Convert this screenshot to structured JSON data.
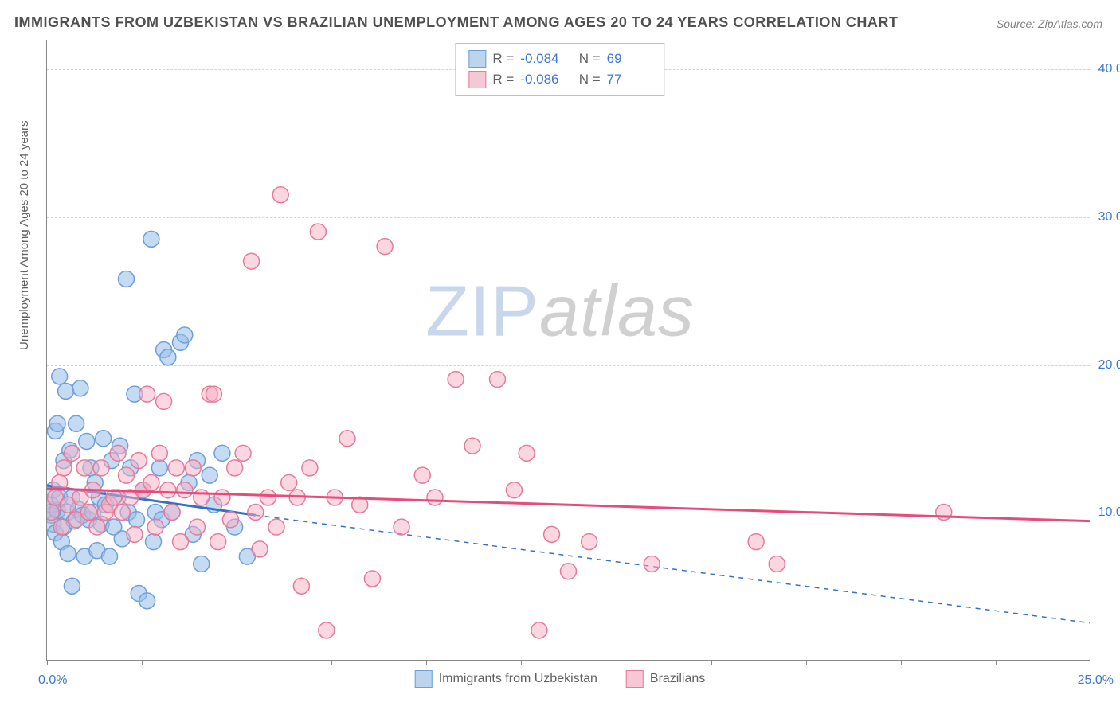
{
  "chart": {
    "type": "scatter",
    "title": "IMMIGRANTS FROM UZBEKISTAN VS BRAZILIAN UNEMPLOYMENT AMONG AGES 20 TO 24 YEARS CORRELATION CHART",
    "source": "Source: ZipAtlas.com",
    "y_axis_label": "Unemployment Among Ages 20 to 24 years",
    "xlim": [
      0,
      25
    ],
    "ylim": [
      0,
      42
    ],
    "x_tick_count": 11,
    "x_left_label": "0.0%",
    "x_right_label": "25.0%",
    "y_ticks": [
      {
        "v": 10,
        "label": "10.0%"
      },
      {
        "v": 20,
        "label": "20.0%"
      },
      {
        "v": 30,
        "label": "30.0%"
      },
      {
        "v": 40,
        "label": "40.0%"
      }
    ],
    "grid_color": "#d5d5d5",
    "axis_color": "#888888",
    "tick_label_color": "#3b77d8",
    "background_color": "#ffffff",
    "marker_radius": 10,
    "marker_stroke_width": 1.5,
    "trend_line_width": 3,
    "trend_dash_width": 1.5,
    "title_fontsize": 18,
    "label_fontsize": 15,
    "tick_fontsize": 16,
    "legend_fontsize": 17,
    "watermark": {
      "part1": "ZIP",
      "part2": "atlas",
      "fontsize": 90
    },
    "series": [
      {
        "key": "uzbekistan",
        "name": "Immigrants from Uzbekistan",
        "fill": "rgba(150,190,235,0.55)",
        "stroke": "#6f9fd8",
        "swatch_fill": "#bcd4ee",
        "swatch_stroke": "#6f9fd8",
        "trend_color": "#3470c8",
        "trend_solid": {
          "x1": 0,
          "y1": 11.8,
          "x2": 5.0,
          "y2": 9.8
        },
        "trend_dash": {
          "x1": 5.0,
          "y1": 9.8,
          "x2": 25.0,
          "y2": 2.5
        },
        "R": "-0.084",
        "N": "69",
        "points": [
          [
            0.05,
            10.2
          ],
          [
            0.1,
            9.8
          ],
          [
            0.1,
            10.5
          ],
          [
            0.15,
            11.5
          ],
          [
            0.15,
            9.2
          ],
          [
            0.2,
            15.5
          ],
          [
            0.2,
            8.6
          ],
          [
            0.25,
            16.0
          ],
          [
            0.25,
            10.1
          ],
          [
            0.3,
            19.2
          ],
          [
            0.3,
            11.0
          ],
          [
            0.35,
            8.0
          ],
          [
            0.4,
            13.5
          ],
          [
            0.4,
            9.0
          ],
          [
            0.45,
            18.2
          ],
          [
            0.5,
            10.0
          ],
          [
            0.5,
            7.2
          ],
          [
            0.55,
            14.2
          ],
          [
            0.6,
            11.0
          ],
          [
            0.6,
            5.0
          ],
          [
            0.65,
            9.4
          ],
          [
            0.7,
            16.0
          ],
          [
            0.75,
            10.2
          ],
          [
            0.8,
            18.4
          ],
          [
            0.85,
            9.8
          ],
          [
            0.9,
            7.0
          ],
          [
            0.95,
            14.8
          ],
          [
            1.0,
            9.5
          ],
          [
            1.05,
            13.0
          ],
          [
            1.1,
            10.0
          ],
          [
            1.15,
            12.0
          ],
          [
            1.2,
            7.4
          ],
          [
            1.25,
            11.0
          ],
          [
            1.3,
            9.2
          ],
          [
            1.35,
            15.0
          ],
          [
            1.4,
            10.5
          ],
          [
            1.5,
            7.0
          ],
          [
            1.55,
            13.5
          ],
          [
            1.6,
            9.0
          ],
          [
            1.7,
            11.0
          ],
          [
            1.75,
            14.5
          ],
          [
            1.8,
            8.2
          ],
          [
            1.9,
            25.8
          ],
          [
            1.95,
            10.0
          ],
          [
            2.0,
            13.0
          ],
          [
            2.1,
            18.0
          ],
          [
            2.15,
            9.5
          ],
          [
            2.2,
            4.5
          ],
          [
            2.3,
            11.5
          ],
          [
            2.4,
            4.0
          ],
          [
            2.5,
            28.5
          ],
          [
            2.55,
            8.0
          ],
          [
            2.6,
            10.0
          ],
          [
            2.7,
            13.0
          ],
          [
            2.75,
            9.5
          ],
          [
            2.8,
            21.0
          ],
          [
            2.9,
            20.5
          ],
          [
            3.0,
            10.0
          ],
          [
            3.2,
            21.5
          ],
          [
            3.3,
            22.0
          ],
          [
            3.4,
            12.0
          ],
          [
            3.5,
            8.5
          ],
          [
            3.6,
            13.5
          ],
          [
            3.7,
            6.5
          ],
          [
            3.9,
            12.5
          ],
          [
            4.0,
            10.5
          ],
          [
            4.2,
            14.0
          ],
          [
            4.5,
            9.0
          ],
          [
            4.8,
            7.0
          ]
        ]
      },
      {
        "key": "brazilians",
        "name": "Brazilians",
        "fill": "rgba(245,175,195,0.50)",
        "stroke": "#e77a9a",
        "swatch_fill": "#f6c7d5",
        "swatch_stroke": "#e77a9a",
        "trend_color": "#e84a7a",
        "trend_solid": {
          "x1": 0,
          "y1": 11.6,
          "x2": 25.0,
          "y2": 9.4
        },
        "trend_dash": null,
        "R": "-0.086",
        "N": "77",
        "points": [
          [
            0.1,
            10.0
          ],
          [
            0.2,
            11.0
          ],
          [
            0.3,
            12.0
          ],
          [
            0.35,
            9.0
          ],
          [
            0.4,
            13.0
          ],
          [
            0.5,
            10.5
          ],
          [
            0.6,
            14.0
          ],
          [
            0.7,
            9.5
          ],
          [
            0.8,
            11.0
          ],
          [
            0.9,
            13.0
          ],
          [
            1.0,
            10.0
          ],
          [
            1.1,
            11.5
          ],
          [
            1.2,
            9.0
          ],
          [
            1.3,
            13.0
          ],
          [
            1.4,
            10.0
          ],
          [
            1.5,
            10.5
          ],
          [
            1.6,
            11.0
          ],
          [
            1.7,
            14.0
          ],
          [
            1.8,
            10.0
          ],
          [
            1.9,
            12.5
          ],
          [
            2.0,
            11.0
          ],
          [
            2.1,
            8.5
          ],
          [
            2.2,
            13.5
          ],
          [
            2.3,
            11.5
          ],
          [
            2.4,
            18.0
          ],
          [
            2.5,
            12.0
          ],
          [
            2.6,
            9.0
          ],
          [
            2.7,
            14.0
          ],
          [
            2.8,
            17.5
          ],
          [
            2.9,
            11.5
          ],
          [
            3.0,
            10.0
          ],
          [
            3.1,
            13.0
          ],
          [
            3.2,
            8.0
          ],
          [
            3.3,
            11.5
          ],
          [
            3.5,
            13.0
          ],
          [
            3.6,
            9.0
          ],
          [
            3.7,
            11.0
          ],
          [
            3.9,
            18.0
          ],
          [
            4.0,
            18.0
          ],
          [
            4.1,
            8.0
          ],
          [
            4.2,
            11.0
          ],
          [
            4.4,
            9.5
          ],
          [
            4.5,
            13.0
          ],
          [
            4.7,
            14.0
          ],
          [
            4.9,
            27.0
          ],
          [
            5.0,
            10.0
          ],
          [
            5.1,
            7.5
          ],
          [
            5.3,
            11.0
          ],
          [
            5.5,
            9.0
          ],
          [
            5.6,
            31.5
          ],
          [
            5.8,
            12.0
          ],
          [
            6.0,
            11.0
          ],
          [
            6.1,
            5.0
          ],
          [
            6.3,
            13.0
          ],
          [
            6.5,
            29.0
          ],
          [
            6.7,
            2.0
          ],
          [
            6.9,
            11.0
          ],
          [
            7.2,
            15.0
          ],
          [
            7.5,
            10.5
          ],
          [
            7.8,
            5.5
          ],
          [
            8.1,
            28.0
          ],
          [
            8.5,
            9.0
          ],
          [
            9.0,
            12.5
          ],
          [
            9.3,
            11.0
          ],
          [
            9.8,
            19.0
          ],
          [
            10.2,
            14.5
          ],
          [
            10.8,
            19.0
          ],
          [
            11.2,
            11.5
          ],
          [
            11.5,
            14.0
          ],
          [
            11.8,
            2.0
          ],
          [
            12.1,
            8.5
          ],
          [
            12.5,
            6.0
          ],
          [
            13.0,
            8.0
          ],
          [
            14.5,
            6.5
          ],
          [
            17.0,
            8.0
          ],
          [
            17.5,
            6.5
          ],
          [
            21.5,
            10.0
          ]
        ]
      }
    ]
  }
}
